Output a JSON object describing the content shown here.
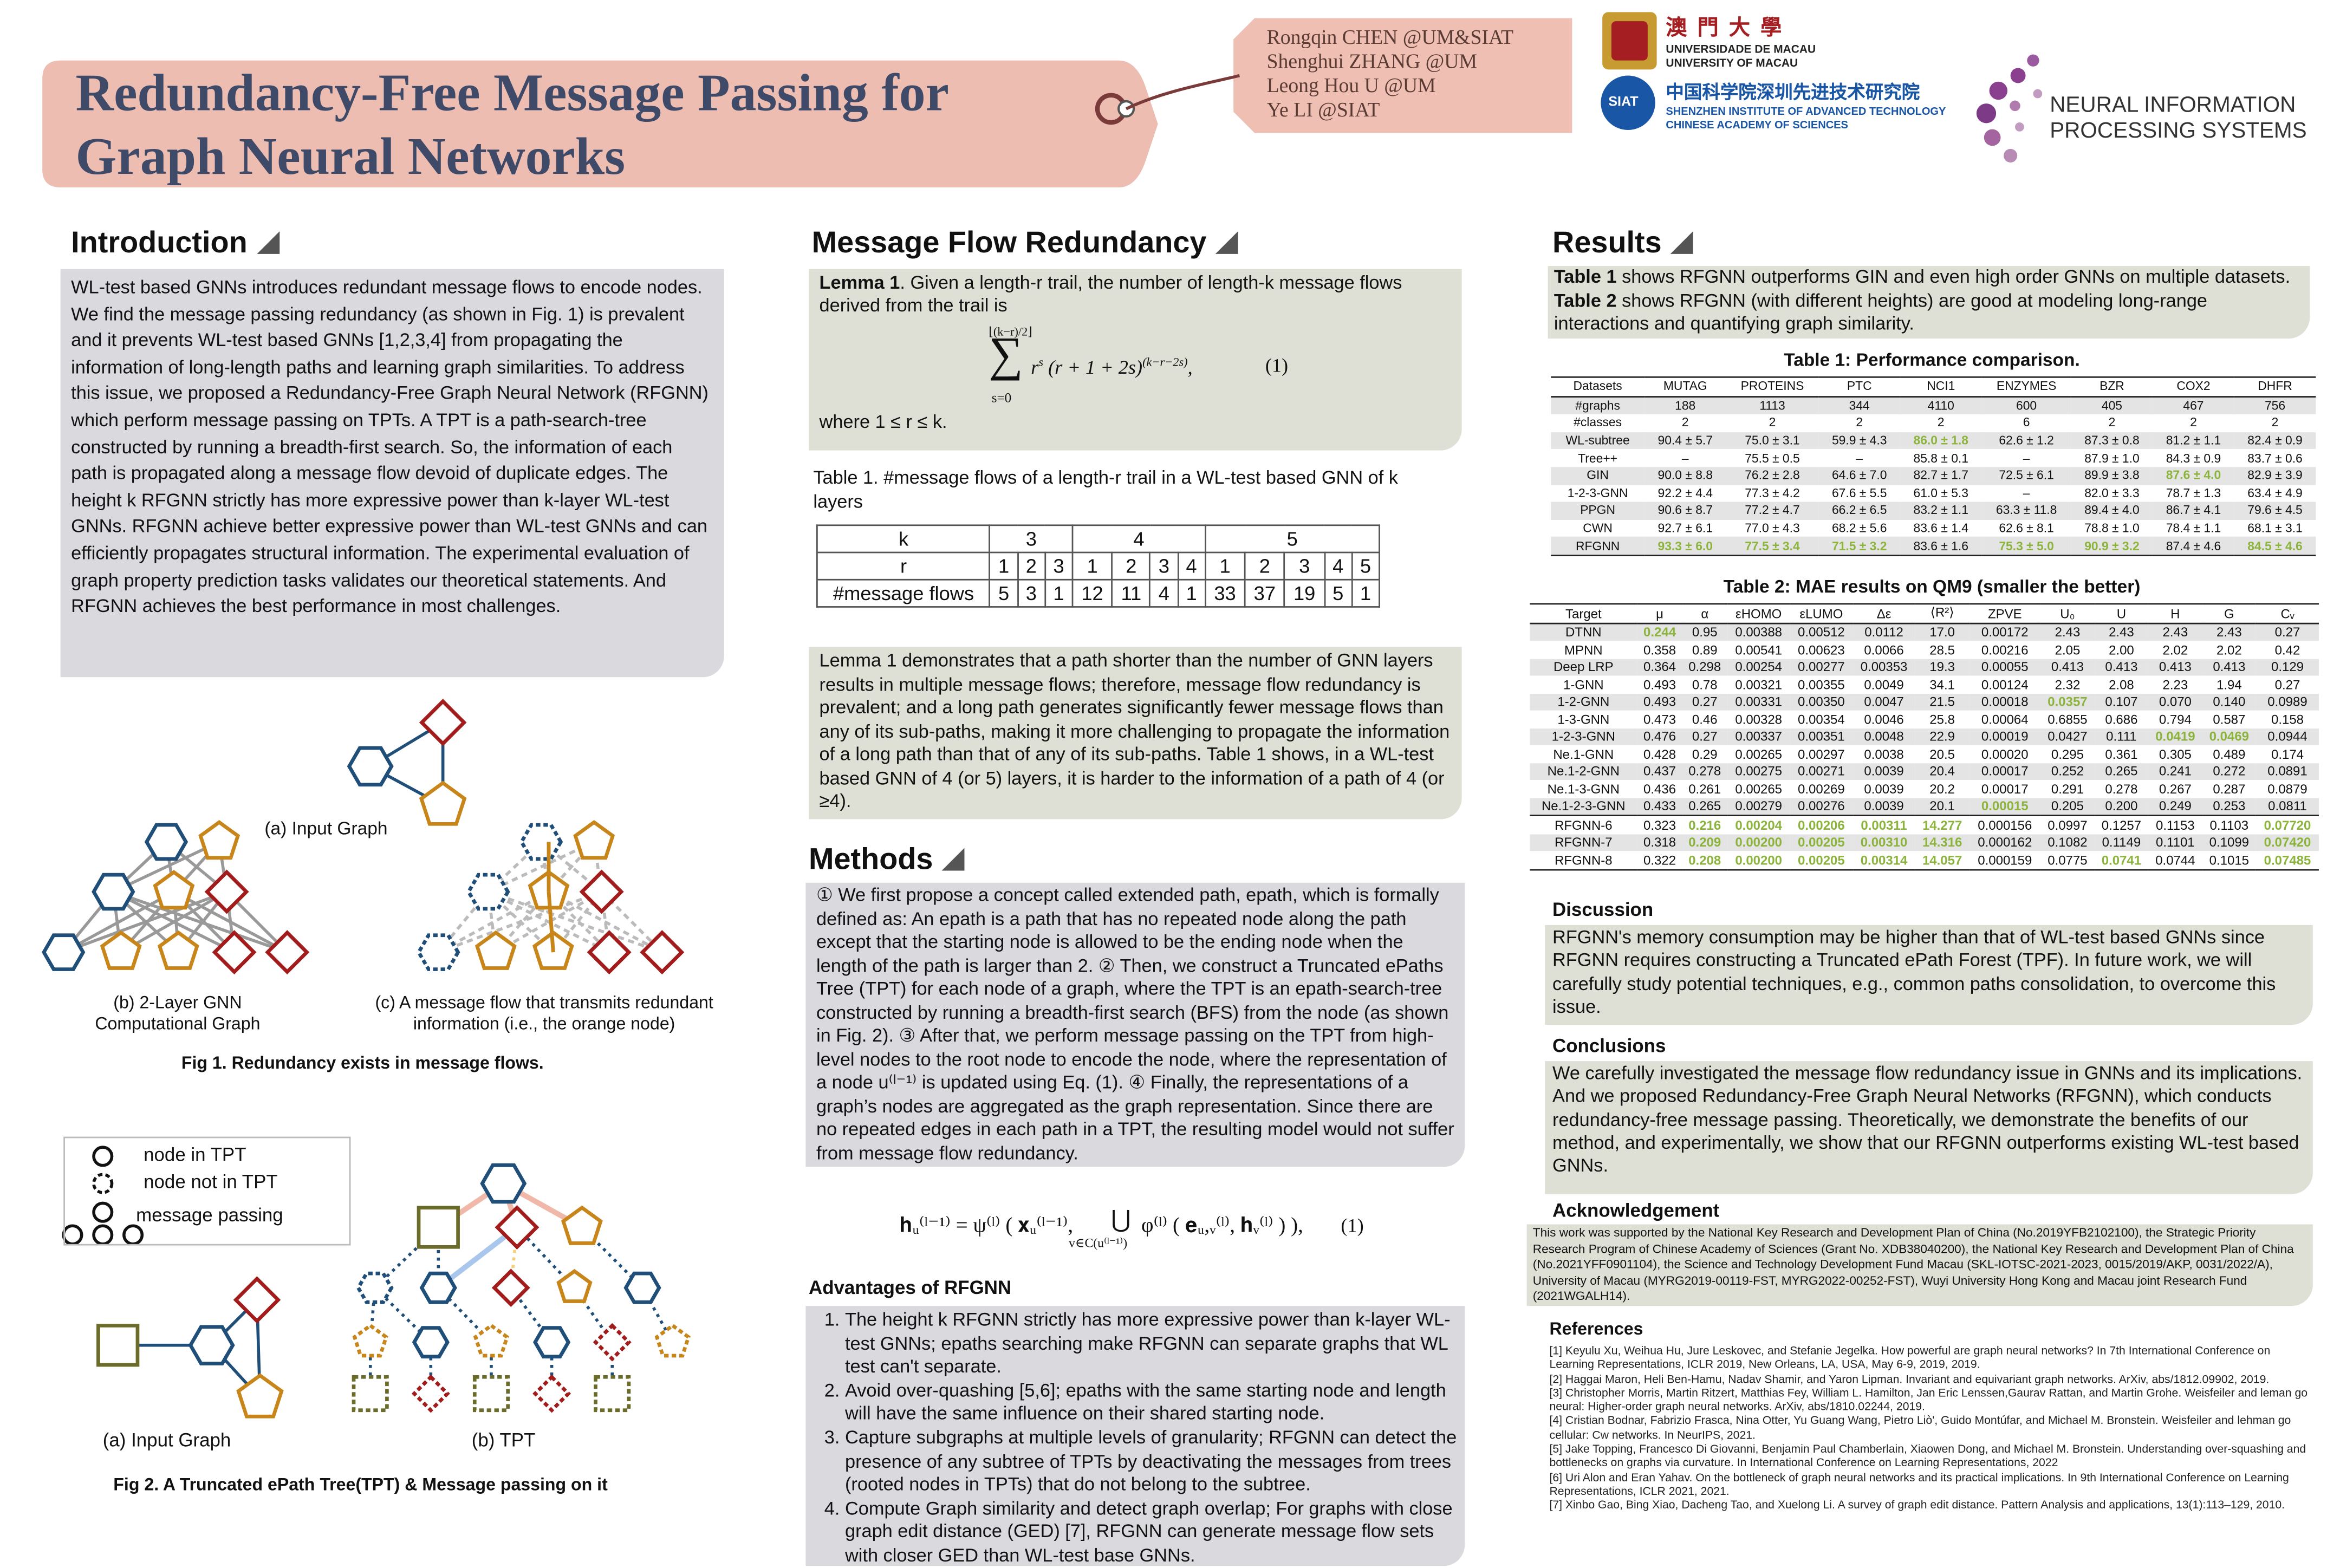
{
  "header": {
    "title_lines": [
      "Redundancy-Free Message Passing for",
      "Graph Neural Networks"
    ],
    "authors": [
      "Rongqin CHEN  @UM&SIAT",
      "Shenghui ZHANG  @UM",
      "Leong Hou U  @UM",
      "Ye LI  @SIAT"
    ],
    "um": {
      "chinese": "澳 門 大 學",
      "pt": "UNIVERSIDADE DE MACAU",
      "en": "UNIVERSITY OF MACAU"
    },
    "siat": {
      "badge": "SIAT",
      "chinese": "中国科学院深圳先进技术研究院",
      "en1": "SHENZHEN INSTITUTE OF ADVANCED TECHNOLOGY",
      "en2": "CHINESE ACADEMY OF SCIENCES"
    },
    "neurips": [
      "NEURAL INFORMATION",
      "PROCESSING SYSTEMS"
    ]
  },
  "introduction": {
    "heading": "Introduction",
    "text": "WL-test based GNNs introduces redundant message flows to encode nodes. We find the message passing redundancy (as shown in Fig. 1) is prevalent and it prevents WL-test based GNNs [1,2,3,4] from propagating the information of long-length paths and learning graph similarities. To address this issue, we proposed a Redundancy-Free Graph Neural Network (RFGNN) which perform message passing on TPTs. A TPT is a path-search-tree constructed by running a breadth-first search. So, the information of each path is propagated along a message flow devoid of duplicate edges. The height k RFGNN strictly has more expressive power than k-layer WL-test GNNs. RFGNN achieve better expressive power than WL-test GNNs and can efficiently propagates structural information. The experimental evaluation of graph property prediction tasks validates our theoretical statements. And RFGNN achieves the best performance in most challenges."
  },
  "figure1": {
    "label_a": "(a) Input Graph",
    "label_b": [
      "(b) 2-Layer GNN",
      "Computational Graph"
    ],
    "label_c": [
      "(c) A message flow that transmits redundant",
      "information (i.e., the orange node)"
    ],
    "caption": "Fig 1. Redundancy exists in message flows."
  },
  "figure2": {
    "legend": [
      "node in TPT",
      "node not in TPT",
      "message passing"
    ],
    "label_a": "(a) Input Graph",
    "label_b": "(b) TPT",
    "caption": "Fig 2. A Truncated ePath Tree(TPT) & Message passing on it"
  },
  "message_flow": {
    "heading": "Message Flow Redundancy",
    "lemma_label": "Lemma 1",
    "lemma_text": ". Given a length-r trail, the number of length-k message flows derived from the trail is",
    "formula": {
      "upper": "⌊(k−r)/2⌋",
      "sigma": "∑",
      "lower": "s=0",
      "base1": "r",
      "exp1": "s",
      "base2": "(r + 1 + 2s)",
      "exp2": "(k−r−2s)",
      "tail": ",",
      "number": "(1)"
    },
    "where": "where 1 ≤ r ≤ k.",
    "table_caption": "Table 1. #message flows of a length-r trail in a WL-test based GNN of k layers",
    "table": {
      "k_label": "k",
      "r_label": "r",
      "flows_label": "#message flows",
      "groups": [
        {
          "k": 3,
          "r": [
            1,
            2,
            3
          ],
          "flows": [
            5,
            3,
            1
          ]
        },
        {
          "k": 4,
          "r": [
            1,
            2,
            3,
            4
          ],
          "flows": [
            12,
            11,
            4,
            1
          ]
        },
        {
          "k": 5,
          "r": [
            1,
            2,
            3,
            4,
            5
          ],
          "flows": [
            33,
            37,
            19,
            5,
            1
          ]
        }
      ]
    },
    "paragraph": "Lemma 1 demonstrates that a path shorter than the number of GNN layers results in multiple message flows; therefore, message flow redundancy is prevalent; and a long path generates significantly fewer message flows than any of its sub-paths, making it more challenging to propagate the information of a long path than that of any of its sub-paths. Table 1 shows, in a WL-test based GNN of 4 (or 5) layers, it is harder to the information of a path of 4 (or ≥4)."
  },
  "methods": {
    "heading": "Methods",
    "text": "① We first propose a concept called extended path, epath, which is formally defined as: An epath is a path that has no repeated node along the path except that the starting node is allowed to be the ending node when the length of the path is larger than 2. ② Then, we construct a Truncated ePaths Tree (TPT) for each node of a graph, where the TPT is an epath-search-tree constructed by running a breadth-first search (BFS) from the node (as shown in Fig. 2). ③ After that, we perform message passing on the TPT from high-level nodes to the root node to encode the node, where the representation of a node u⁽ˡ⁻¹⁾ is updated using Eq. (1). ④ Finally, the representations of a graph’s nodes are aggregated as the graph representation. Since there are no repeated edges in each path in a TPT, the resulting model would not suffer from message flow redundancy.",
    "formula": {
      "left": "𝐡ᵤ⁽ˡ⁻¹⁾ = ψ⁽ˡ⁾ ( 𝐱ᵤ⁽ˡ⁻¹⁾,",
      "union": "⋃",
      "union_sub": "v∈C(u⁽ˡ⁻¹⁾)",
      "right": "φ⁽ˡ⁾ ( 𝐞ᵤ,ᵥ⁽ˡ⁾, 𝐡ᵥ⁽ˡ⁾ ) ),",
      "number": "(1)"
    },
    "advantages_heading": "Advantages of RFGNN",
    "advantages": [
      "The height k RFGNN strictly has more expressive power than k-layer WL-test GNNs; epaths searching make RFGNN can separate graphs that WL test can't separate.",
      "Avoid over-quashing [5,6]; epaths with the same starting node and length will have the same influence on their shared starting node.",
      "Capture subgraphs at multiple levels of granularity; RFGNN can detect the presence of any subtree of TPTs by deactivating the messages from trees (rooted nodes in TPTs) that do not belong to the subtree.",
      "Compute Graph similarity and detect graph overlap; For graphs with close graph edit distance (GED) [7], RFGNN can generate message flow sets with closer GED than WL-test base GNNs."
    ]
  },
  "results": {
    "heading": "Results",
    "intro": [
      {
        "bold": "Table 1",
        "text": " shows RFGNN outperforms GIN and even high order GNNs on multiple datasets."
      },
      {
        "bold": "Table 2",
        "text": " shows RFGNN (with different heights) are good at modeling long-range interactions and quantifying graph similarity."
      }
    ],
    "table1": {
      "title": "Table 1: Performance comparison.",
      "header": [
        "Datasets",
        "MUTAG",
        "PROTEINS",
        "PTC",
        "NCI1",
        "ENZYMES",
        "BZR",
        "COX2",
        "DHFR"
      ],
      "rows": [
        [
          "#graphs",
          "188",
          "1113",
          "344",
          "4110",
          "600",
          "405",
          "467",
          "756"
        ],
        [
          "#classes",
          "2",
          "2",
          "2",
          "2",
          "6",
          "2",
          "2",
          "2"
        ],
        [
          "WL-subtree",
          "90.4 ± 5.7",
          "75.0 ± 3.1",
          "59.9 ± 4.3",
          "86.0 ± 1.8",
          "62.6 ± 1.2",
          "87.3 ± 0.8",
          "81.2 ± 1.1",
          "82.4 ± 0.9"
        ],
        [
          "Tree++",
          "–",
          "75.5 ± 0.5",
          "–",
          "85.8 ± 0.1",
          "–",
          "87.9 ± 1.0",
          "84.3 ± 0.9",
          "83.7 ± 0.6"
        ],
        [
          "GIN",
          "90.0 ± 8.8",
          "76.2 ± 2.8",
          "64.6 ± 7.0",
          "82.7 ± 1.7",
          "72.5 ± 6.1",
          "89.9 ± 3.8",
          "87.6 ± 4.0",
          "82.9 ± 3.9"
        ],
        [
          "1-2-3-GNN",
          "92.2 ± 4.4",
          "77.3 ± 4.2",
          "67.6 ± 5.5",
          "61.0 ± 5.3",
          "–",
          "82.0 ± 3.3",
          "78.7 ± 1.3",
          "63.4 ± 4.9"
        ],
        [
          "PPGN",
          "90.6 ± 8.7",
          "77.2 ± 4.7",
          "66.2 ± 6.5",
          "83.2 ± 1.1",
          "63.3 ± 11.8",
          "89.4 ± 4.0",
          "86.7 ± 4.1",
          "79.6 ± 4.5"
        ],
        [
          "CWN",
          "92.7 ± 6.1",
          "77.0 ± 4.3",
          "68.2 ± 5.6",
          "83.6 ± 1.4",
          "62.6 ± 8.1",
          "78.8 ± 1.0",
          "78.4 ± 1.1",
          "68.1 ± 3.1"
        ],
        [
          "RFGNN",
          "93.3 ± 6.0",
          "77.5 ± 3.4",
          "71.5 ± 3.2",
          "83.6 ± 1.6",
          "75.3 ± 5.0",
          "90.9 ± 3.2",
          "87.4 ± 4.6",
          "84.5 ± 4.6"
        ]
      ],
      "best_color": "#8cb43c",
      "best_cells": [
        [
          2,
          4
        ],
        [
          4,
          7
        ],
        [
          8,
          1
        ],
        [
          8,
          2
        ],
        [
          8,
          3
        ],
        [
          8,
          5
        ],
        [
          8,
          6
        ],
        [
          8,
          8
        ]
      ]
    },
    "table2": {
      "title": "Table 2: MAE results on QM9 (smaller the better)",
      "header": [
        "Target",
        "μ",
        "α",
        "εHOMO",
        "εLUMO",
        "Δε",
        "⟨R²⟩",
        "ZPVE",
        "U₀",
        "U",
        "H",
        "G",
        "Cᵥ"
      ],
      "rows": [
        [
          "DTNN",
          "0.244",
          "0.95",
          "0.00388",
          "0.00512",
          "0.0112",
          "17.0",
          "0.00172",
          "2.43",
          "2.43",
          "2.43",
          "2.43",
          "0.27"
        ],
        [
          "MPNN",
          "0.358",
          "0.89",
          "0.00541",
          "0.00623",
          "0.0066",
          "28.5",
          "0.00216",
          "2.05",
          "2.00",
          "2.02",
          "2.02",
          "0.42"
        ],
        [
          "Deep LRP",
          "0.364",
          "0.298",
          "0.00254",
          "0.00277",
          "0.00353",
          "19.3",
          "0.00055",
          "0.413",
          "0.413",
          "0.413",
          "0.413",
          "0.129"
        ],
        [
          "1-GNN",
          "0.493",
          "0.78",
          "0.00321",
          "0.00355",
          "0.0049",
          "34.1",
          "0.00124",
          "2.32",
          "2.08",
          "2.23",
          "1.94",
          "0.27"
        ],
        [
          "1-2-GNN",
          "0.493",
          "0.27",
          "0.00331",
          "0.00350",
          "0.0047",
          "21.5",
          "0.00018",
          "0.0357",
          "0.107",
          "0.070",
          "0.140",
          "0.0989"
        ],
        [
          "1-3-GNN",
          "0.473",
          "0.46",
          "0.00328",
          "0.00354",
          "0.0046",
          "25.8",
          "0.00064",
          "0.6855",
          "0.686",
          "0.794",
          "0.587",
          "0.158"
        ],
        [
          "1-2-3-GNN",
          "0.476",
          "0.27",
          "0.00337",
          "0.00351",
          "0.0048",
          "22.9",
          "0.00019",
          "0.0427",
          "0.111",
          "0.0419",
          "0.0469",
          "0.0944"
        ],
        [
          "Ne.1-GNN",
          "0.428",
          "0.29",
          "0.00265",
          "0.00297",
          "0.0038",
          "20.5",
          "0.00020",
          "0.295",
          "0.361",
          "0.305",
          "0.489",
          "0.174"
        ],
        [
          "Ne.1-2-GNN",
          "0.437",
          "0.278",
          "0.00275",
          "0.00271",
          "0.0039",
          "20.4",
          "0.00017",
          "0.252",
          "0.265",
          "0.241",
          "0.272",
          "0.0891"
        ],
        [
          "Ne.1-3-GNN",
          "0.436",
          "0.261",
          "0.00265",
          "0.00269",
          "0.0039",
          "20.2",
          "0.00017",
          "0.291",
          "0.278",
          "0.267",
          "0.287",
          "0.0879"
        ],
        [
          "Ne.1-2-3-GNN",
          "0.433",
          "0.265",
          "0.00279",
          "0.00276",
          "0.0039",
          "20.1",
          "0.00015",
          "0.205",
          "0.200",
          "0.249",
          "0.253",
          "0.0811"
        ],
        [
          "RFGNN-6",
          "0.323",
          "0.216",
          "0.00204",
          "0.00206",
          "0.00311",
          "14.277",
          "0.000156",
          "0.0997",
          "0.1257",
          "0.1153",
          "0.1103",
          "0.07720"
        ],
        [
          "RFGNN-7",
          "0.318",
          "0.209",
          "0.00200",
          "0.00205",
          "0.00310",
          "14.316",
          "0.000162",
          "0.1082",
          "0.1149",
          "0.1101",
          "0.1099",
          "0.07420"
        ],
        [
          "RFGNN-8",
          "0.322",
          "0.208",
          "0.00200",
          "0.00205",
          "0.00314",
          "14.057",
          "0.000159",
          "0.0775",
          "0.0741",
          "0.0744",
          "0.1015",
          "0.07485"
        ]
      ],
      "best_color": "#8cb43c",
      "best_cells": [
        [
          0,
          1
        ],
        [
          4,
          8
        ],
        [
          6,
          10
        ],
        [
          6,
          11
        ],
        [
          10,
          7
        ],
        [
          11,
          2
        ],
        [
          11,
          3
        ],
        [
          11,
          4
        ],
        [
          11,
          5
        ],
        [
          11,
          6
        ],
        [
          11,
          12
        ],
        [
          12,
          2
        ],
        [
          12,
          3
        ],
        [
          12,
          4
        ],
        [
          12,
          5
        ],
        [
          12,
          6
        ],
        [
          12,
          12
        ],
        [
          13,
          2
        ],
        [
          13,
          3
        ],
        [
          13,
          4
        ],
        [
          13,
          5
        ],
        [
          13,
          6
        ],
        [
          13,
          9
        ],
        [
          13,
          12
        ]
      ]
    },
    "discussion": {
      "heading": "Discussion",
      "text": "RFGNN's memory consumption may be higher than that of WL-test based GNNs since RFGNN requires constructing a Truncated ePath Forest (TPF). In future work, we will carefully study potential techniques, e.g., common paths consolidation, to overcome this issue."
    },
    "conclusions": {
      "heading": "Conclusions",
      "text": "We carefully investigated the message flow redundancy issue in GNNs and its implications. And we proposed Redundancy-Free Graph Neural Networks (RFGNN), which conducts redundancy-free message passing. Theoretically, we demonstrate the benefits of our method, and experimentally, we show that our RFGNN outperforms existing WL-test based GNNs."
    },
    "acknowledgement": {
      "heading": "Acknowledgement",
      "text": "This work was supported by the National Key Research and Development Plan of China (No.2019YFB2102100), the Strategic Priority Research Program of Chinese Academy of Sciences (Grant No. XDB38040200), the National Key Research and Development Plan of China (No.2021YFF0901104), the Science and Technology Development Fund Macau (SKL-IOTSC-2021-2023, 0015/2019/AKP, 0031/2022/A), University of Macau (MYRG2019-00119-FST, MYRG2022-00252-FST), Wuyi University Hong Kong and Macau joint Research Fund (2021WGALH14)."
    },
    "references": {
      "heading": "References",
      "items": [
        "[1] Keyulu Xu, Weihua Hu, Jure Leskovec, and Stefanie Jegelka. How powerful are graph neural networks? In 7th International Conference on Learning Representations, ICLR 2019, New Orleans, LA, USA, May 6-9, 2019, 2019.",
        "[2] Haggai Maron, Heli Ben-Hamu, Nadav Shamir, and Yaron Lipman. Invariant and equivariant graph networks. ArXiv, abs/1812.09902, 2019.",
        "[3] Christopher Morris, Martin Ritzert, Matthias Fey, William L. Hamilton, Jan Eric Lenssen,Gaurav Rattan, and Martin Grohe. Weisfeiler and leman go neural: Higher-order graph neural networks. ArXiv, abs/1810.02244, 2019.",
        "[4] Cristian Bodnar, Fabrizio Frasca, Nina Otter, Yu Guang Wang, Pietro Liò', Guido Montúfar, and Michael M. Bronstein. Weisfeiler and lehman go cellular: Cw networks. In NeurIPS, 2021.",
        "[5] Jake Topping, Francesco Di Giovanni, Benjamin Paul Chamberlain, Xiaowen Dong, and Michael M. Bronstein. Understanding over-squashing and bottlenecks on graphs via curvature. In International Conference on Learning Representations, 2022",
        "[6] Uri Alon and Eran Yahav. On the bottleneck of graph neural networks and its practical implications. In 9th International Conference on Learning Representations, ICLR 2021, 2021.",
        "[7] Xinbo Gao, Bing Xiao, Dacheng Tao, and Xuelong Li. A survey of graph edit distance. Pattern Analysis and applications, 13(1):113–129, 2010."
      ]
    }
  }
}
